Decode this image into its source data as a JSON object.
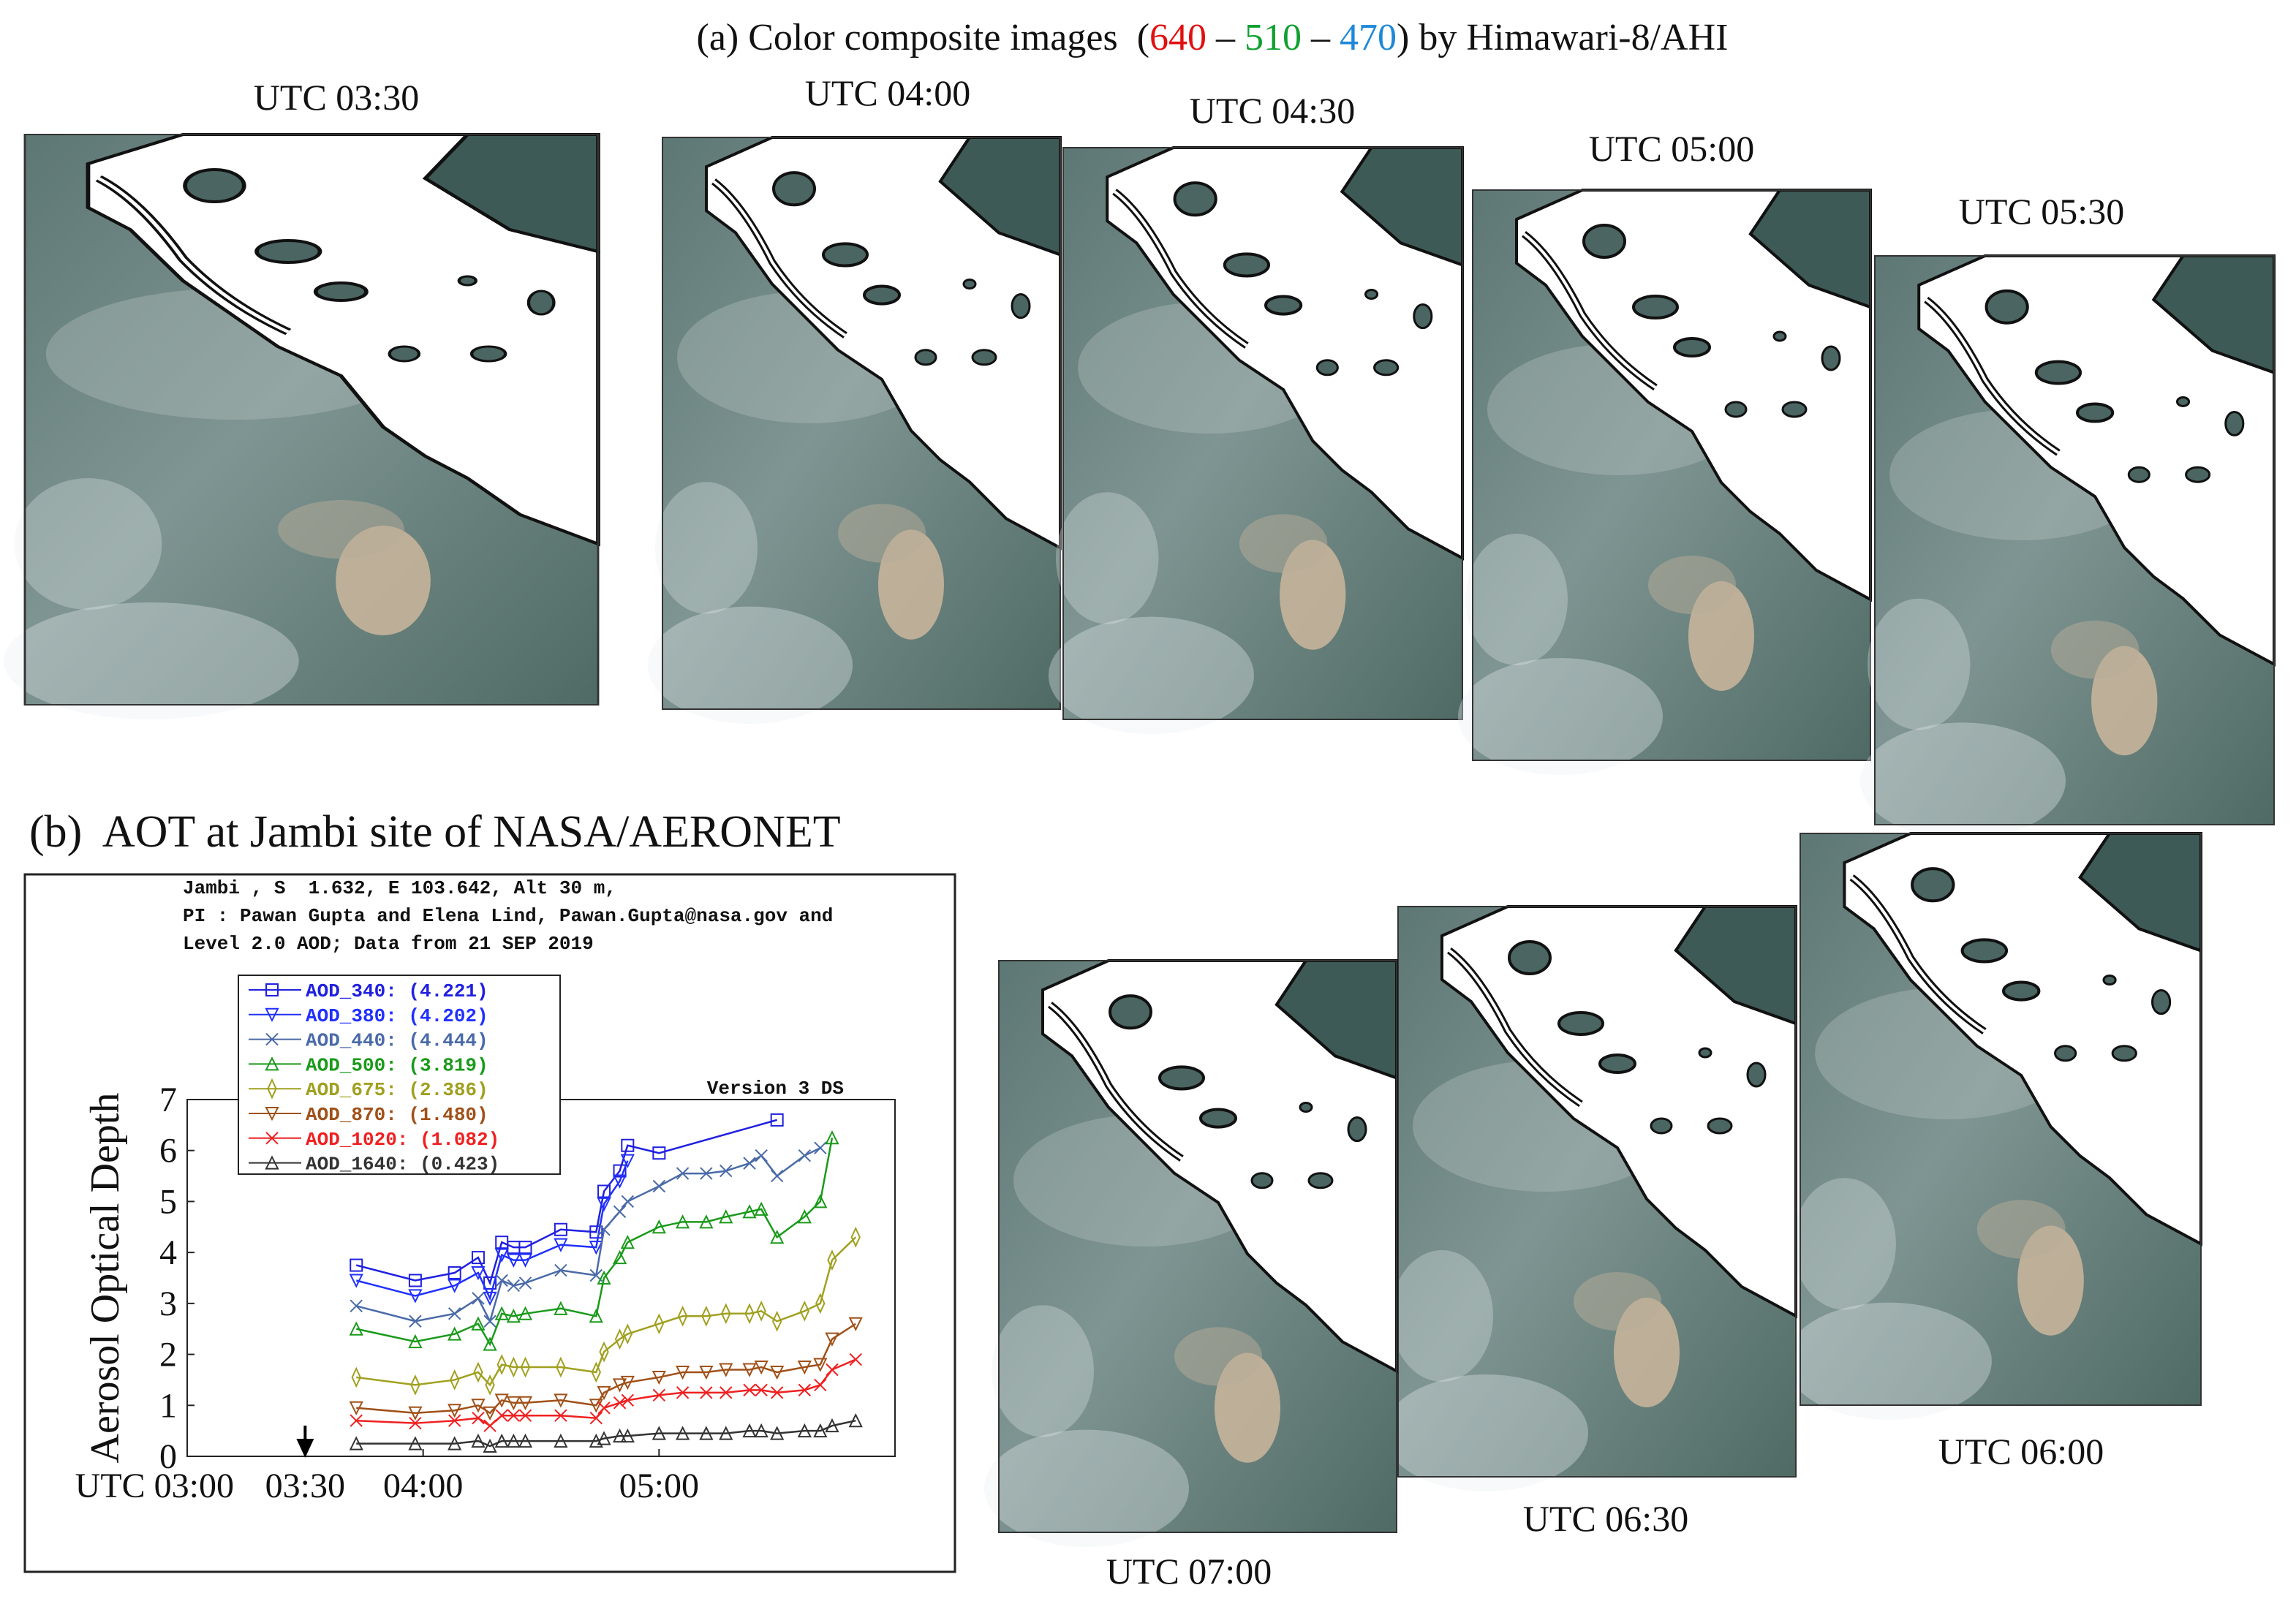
{
  "title_a": {
    "prefix": "(a) Color composite images  (",
    "band_red": "640",
    "sep1": " – ",
    "band_green": "510",
    "sep2": " – ",
    "band_blue": "470",
    "suffix": ") by Himawari-8/AHI"
  },
  "panels": [
    {
      "label": "UTC 03:30"
    },
    {
      "label": "UTC 04:00"
    },
    {
      "label": "UTC 04:30"
    },
    {
      "label": "UTC 05:00"
    },
    {
      "label": "UTC 05:30"
    },
    {
      "label": "UTC 06:00"
    },
    {
      "label": "UTC 06:30"
    },
    {
      "label": "UTC 07:00"
    }
  ],
  "title_b": "(b)  AOT at Jambi site of NASA/AERONET",
  "chart_data": {
    "type": "line",
    "header": [
      "Jambi , S  1.632, E 103.642, Alt 30 m,",
      "PI : Pawan Gupta and Elena Lind, Pawan.Gupta@nasa.gov and",
      "Level 2.0 AOD; Data from 21 SEP 2019"
    ],
    "annotation": "Version 3 DS",
    "ylabel": "Aerosol Optical Depth",
    "xlim": [
      "03:00",
      "06:00"
    ],
    "xticks": [
      {
        "value": "03:00",
        "label": "UTC 03:00"
      },
      "03:30",
      "04:00",
      "05:00"
    ],
    "arrow_at": "03:30",
    "ylim": [
      0,
      7
    ],
    "yticks": [
      0,
      1,
      2,
      3,
      4,
      5,
      6,
      7
    ],
    "series": [
      {
        "name": "AOD_340: (4.221)",
        "color": "#2020e0",
        "marker": "square",
        "x": [
          "03:43",
          "03:58",
          "04:08",
          "04:14",
          "04:17",
          "04:20",
          "04:23",
          "04:26",
          "04:35",
          "04:44",
          "04:46",
          "04:50",
          "04:52",
          "05:00",
          "05:30"
        ],
        "values": [
          3.75,
          3.45,
          3.6,
          3.9,
          3.4,
          4.2,
          4.1,
          4.1,
          4.45,
          4.4,
          5.2,
          5.6,
          6.1,
          5.95,
          6.6
        ]
      },
      {
        "name": "AOD_380: (4.202)",
        "color": "#2030ff",
        "marker": "tri-down",
        "x": [
          "03:43",
          "03:58",
          "04:08",
          "04:14",
          "04:17",
          "04:20",
          "04:23",
          "04:26",
          "04:35",
          "04:44",
          "04:46",
          "04:50",
          "04:52"
        ],
        "values": [
          3.45,
          3.15,
          3.35,
          3.6,
          3.1,
          3.95,
          3.85,
          3.85,
          4.15,
          4.1,
          4.95,
          5.4,
          5.8
        ]
      },
      {
        "name": "AOD_440: (4.444)",
        "color": "#4a6aa8",
        "marker": "x",
        "x": [
          "03:43",
          "03:58",
          "04:08",
          "04:14",
          "04:17",
          "04:20",
          "04:23",
          "04:26",
          "04:35",
          "04:44",
          "04:46",
          "04:50",
          "04:52",
          "05:00",
          "05:06",
          "05:12",
          "05:17",
          "05:23",
          "05:26",
          "05:30",
          "05:37",
          "05:41"
        ],
        "values": [
          2.95,
          2.65,
          2.8,
          3.1,
          2.65,
          3.45,
          3.35,
          3.4,
          3.65,
          3.55,
          4.45,
          4.8,
          5.0,
          5.3,
          5.55,
          5.55,
          5.6,
          5.75,
          5.9,
          5.5,
          5.9,
          6.05
        ]
      },
      {
        "name": "AOD_500: (3.819)",
        "color": "#1a9a1a",
        "marker": "tri-up",
        "x": [
          "03:43",
          "03:58",
          "04:08",
          "04:14",
          "04:17",
          "04:20",
          "04:23",
          "04:26",
          "04:35",
          "04:44",
          "04:46",
          "04:50",
          "04:52",
          "05:00",
          "05:06",
          "05:12",
          "05:17",
          "05:23",
          "05:26",
          "05:30",
          "05:37",
          "05:41",
          "05:44"
        ],
        "values": [
          2.5,
          2.25,
          2.4,
          2.6,
          2.2,
          2.8,
          2.75,
          2.8,
          2.9,
          2.75,
          3.5,
          3.9,
          4.2,
          4.5,
          4.6,
          4.6,
          4.7,
          4.8,
          4.85,
          4.3,
          4.7,
          5.0,
          6.25
        ]
      },
      {
        "name": "AOD_675: (2.386)",
        "color": "#a0a020",
        "marker": "diamond",
        "x": [
          "03:43",
          "03:58",
          "04:08",
          "04:14",
          "04:17",
          "04:20",
          "04:23",
          "04:26",
          "04:35",
          "04:44",
          "04:46",
          "04:50",
          "04:52",
          "05:00",
          "05:06",
          "05:12",
          "05:17",
          "05:23",
          "05:26",
          "05:30",
          "05:37",
          "05:41",
          "05:44",
          "05:50"
        ],
        "values": [
          1.55,
          1.4,
          1.5,
          1.65,
          1.4,
          1.8,
          1.75,
          1.75,
          1.75,
          1.65,
          2.05,
          2.3,
          2.4,
          2.6,
          2.75,
          2.75,
          2.8,
          2.8,
          2.85,
          2.65,
          2.85,
          3.0,
          3.85,
          4.3
        ]
      },
      {
        "name": "AOD_870: (1.480)",
        "color": "#a05018",
        "marker": "tri-down",
        "x": [
          "03:43",
          "03:58",
          "04:08",
          "04:14",
          "04:17",
          "04:20",
          "04:23",
          "04:26",
          "04:35",
          "04:44",
          "04:46",
          "04:50",
          "04:52",
          "05:00",
          "05:06",
          "05:12",
          "05:17",
          "05:23",
          "05:26",
          "05:30",
          "05:37",
          "05:41",
          "05:44",
          "05:50"
        ],
        "values": [
          0.95,
          0.85,
          0.9,
          1.0,
          0.85,
          1.1,
          1.05,
          1.05,
          1.1,
          1.0,
          1.25,
          1.4,
          1.45,
          1.55,
          1.65,
          1.65,
          1.7,
          1.7,
          1.75,
          1.65,
          1.75,
          1.8,
          2.3,
          2.6
        ]
      },
      {
        "name": "AOD_1020: (1.082)",
        "color": "#f02020",
        "marker": "x",
        "x": [
          "03:43",
          "03:58",
          "04:08",
          "04:14",
          "04:17",
          "04:20",
          "04:23",
          "04:26",
          "04:35",
          "04:44",
          "04:46",
          "04:50",
          "04:52",
          "05:00",
          "05:06",
          "05:12",
          "05:17",
          "05:23",
          "05:26",
          "05:30",
          "05:37",
          "05:41",
          "05:44",
          "05:50"
        ],
        "values": [
          0.7,
          0.65,
          0.7,
          0.75,
          0.6,
          0.8,
          0.8,
          0.8,
          0.8,
          0.75,
          0.95,
          1.05,
          1.1,
          1.2,
          1.25,
          1.25,
          1.25,
          1.3,
          1.3,
          1.25,
          1.3,
          1.4,
          1.7,
          1.9
        ]
      },
      {
        "name": "AOD_1640: (0.423)",
        "color": "#333333",
        "marker": "tri-up",
        "x": [
          "03:43",
          "03:58",
          "04:08",
          "04:14",
          "04:17",
          "04:20",
          "04:23",
          "04:26",
          "04:35",
          "04:44",
          "04:46",
          "04:50",
          "04:52",
          "05:00",
          "05:06",
          "05:12",
          "05:17",
          "05:23",
          "05:26",
          "05:30",
          "05:37",
          "05:41",
          "05:44",
          "05:50"
        ],
        "values": [
          0.25,
          0.25,
          0.25,
          0.3,
          0.2,
          0.3,
          0.3,
          0.3,
          0.3,
          0.3,
          0.35,
          0.4,
          0.4,
          0.45,
          0.45,
          0.45,
          0.45,
          0.5,
          0.5,
          0.45,
          0.5,
          0.5,
          0.6,
          0.7
        ]
      }
    ]
  }
}
